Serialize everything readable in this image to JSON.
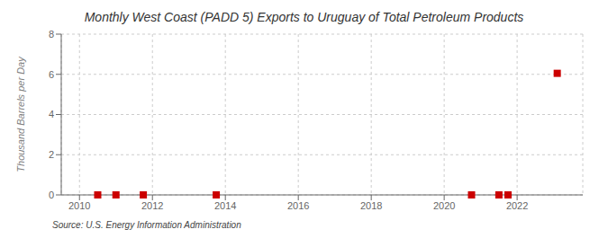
{
  "chart_data": {
    "type": "scatter",
    "title": "Monthly West Coast (PADD 5) Exports to Uruguay of Total Petroleum Products",
    "y_label": "Thousand Barrels per Day",
    "annotations": [
      "Source: U.S. Energy Information Administration"
    ],
    "x": [
      2010.5,
      2011.0,
      2011.75,
      2013.75,
      2020.75,
      2021.5,
      2021.75,
      2023.1
    ],
    "values": [
      0.0,
      0.0,
      0.0,
      0.0,
      0.0,
      0.0,
      0.0,
      6.05
    ],
    "color": "#cc0000",
    "marker": "square",
    "xlim": [
      2009.5,
      2023.8
    ],
    "ylim": [
      0,
      8
    ],
    "xticks": [
      2010,
      2012,
      2014,
      2016,
      2018,
      2020,
      2022
    ],
    "yticks": [
      0,
      2,
      4,
      6,
      8
    ],
    "grid": true
  }
}
